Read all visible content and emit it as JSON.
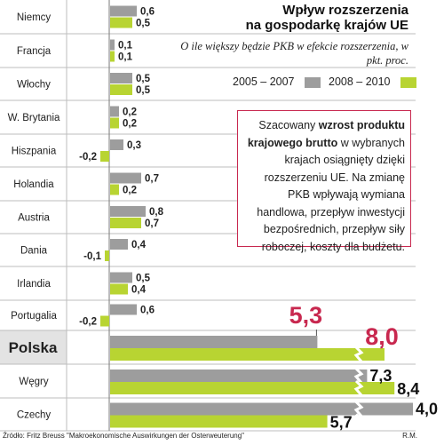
{
  "title_line1": "Wpływ rozszerzenia",
  "title_line2": "na gospodarkę krajów UE",
  "subtitle": "O ile większy będzie PKB w efekcie rozszerzenia, w pkt. proc.",
  "legend": {
    "series1": "2005 – 2007",
    "series2": "2008 – 2010"
  },
  "info": {
    "before": "Szacowany ",
    "bold": "wzrost produktu krajowego brutto",
    "after": " w wybranych krajach osiągnięty dzięki rozszerzeniu UE. Na zmianę PKB wpływają wymiana handlowa, przepływ inwestycji bezpośrednich, przepływ siły roboczej, koszty dla budżetu."
  },
  "source": "Źródło: Fritz Breuss \"Makroekonomische Auswirkungen der Osterweuterung\"",
  "author": "R.M.",
  "colors": {
    "series1": "#9d9d9d",
    "series2": "#b8d432",
    "accent": "#c8284f",
    "highlight_row": "#e3e3e3",
    "grid": "#bdbdbd"
  },
  "chart_data": {
    "type": "bar",
    "orientation": "horizontal",
    "categories": [
      "Niemcy",
      "Francja",
      "Włochy",
      "W. Brytania",
      "Hiszpania",
      "Holandia",
      "Austria",
      "Dania",
      "Irlandia",
      "Portugalia",
      "Polska",
      "Węgry",
      "Czechy"
    ],
    "series": [
      {
        "name": "2005 – 2007",
        "values": [
          0.6,
          0.1,
          0.5,
          0.2,
          0.3,
          0.7,
          0.8,
          0.4,
          0.5,
          0.6,
          5.3,
          7.3,
          4.0
        ]
      },
      {
        "name": "2008 – 2010",
        "values": [
          0.5,
          0.1,
          0.5,
          0.2,
          -0.2,
          0.2,
          0.7,
          -0.1,
          0.4,
          -0.2,
          8.0,
          8.4,
          5.7
        ]
      }
    ],
    "value_labels": [
      [
        "0,6",
        "0,5"
      ],
      [
        "0,1",
        "0,1"
      ],
      [
        "0,5",
        "0,5"
      ],
      [
        "0,2",
        "0,2"
      ],
      [
        "0,3",
        "-0,2"
      ],
      [
        "0,7",
        "0,2"
      ],
      [
        "0,8",
        "0,7"
      ],
      [
        "0,4",
        "-0,1"
      ],
      [
        "0,5",
        "0,4"
      ],
      [
        "0,6",
        "-0,2"
      ],
      [
        "5,3",
        "8,0"
      ],
      [
        "7,3",
        "8,4"
      ],
      [
        "4,0",
        "5,7"
      ]
    ],
    "highlighted_category": "Polska",
    "broken_axis_categories": [
      "Polska",
      "Węgry",
      "Czechy"
    ],
    "grid": true
  }
}
